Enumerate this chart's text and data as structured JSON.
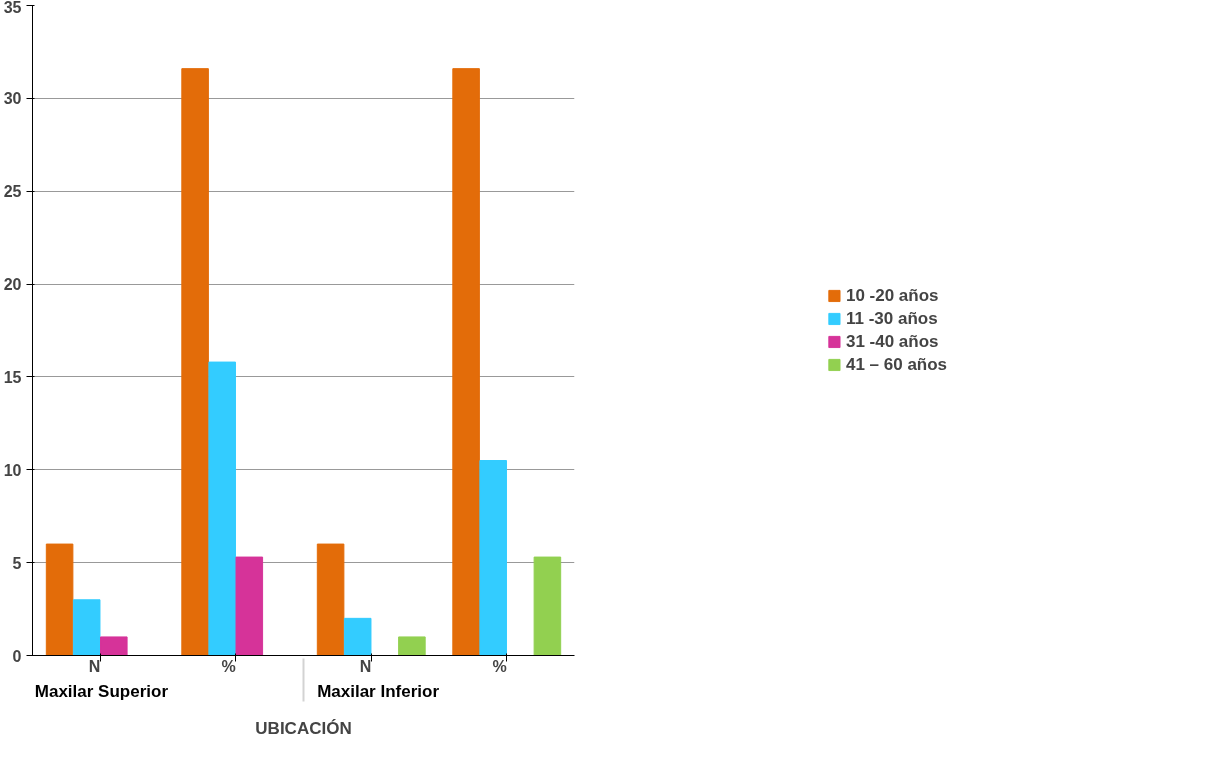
{
  "chart_data": {
    "type": "bar",
    "xlabel": "UBICACIÓN",
    "categories": [
      "N",
      "%",
      "N",
      "%"
    ],
    "annotations": [
      "Maxilar Superior",
      "Maxilar Inferior"
    ],
    "series": [
      {
        "name": "10 -20 años",
        "color": "#e36c09",
        "values": [
          6,
          31.6,
          6,
          31.6
        ]
      },
      {
        "name": "11 -30 años",
        "color": "#33ccff",
        "values": [
          3,
          15.8,
          2,
          10.5
        ]
      },
      {
        "name": "31 -40 años",
        "color": "#d63399",
        "values": [
          1,
          5.3,
          0,
          0
        ]
      },
      {
        "name": "41 – 60 años",
        "color": "#92d050",
        "values": [
          0,
          0,
          1,
          5.3
        ]
      }
    ],
    "ylim": [
      0,
      35
    ],
    "yticks": [
      0,
      5,
      10,
      15,
      20,
      25,
      30,
      35
    ],
    "grid": "y",
    "legend": "right"
  }
}
